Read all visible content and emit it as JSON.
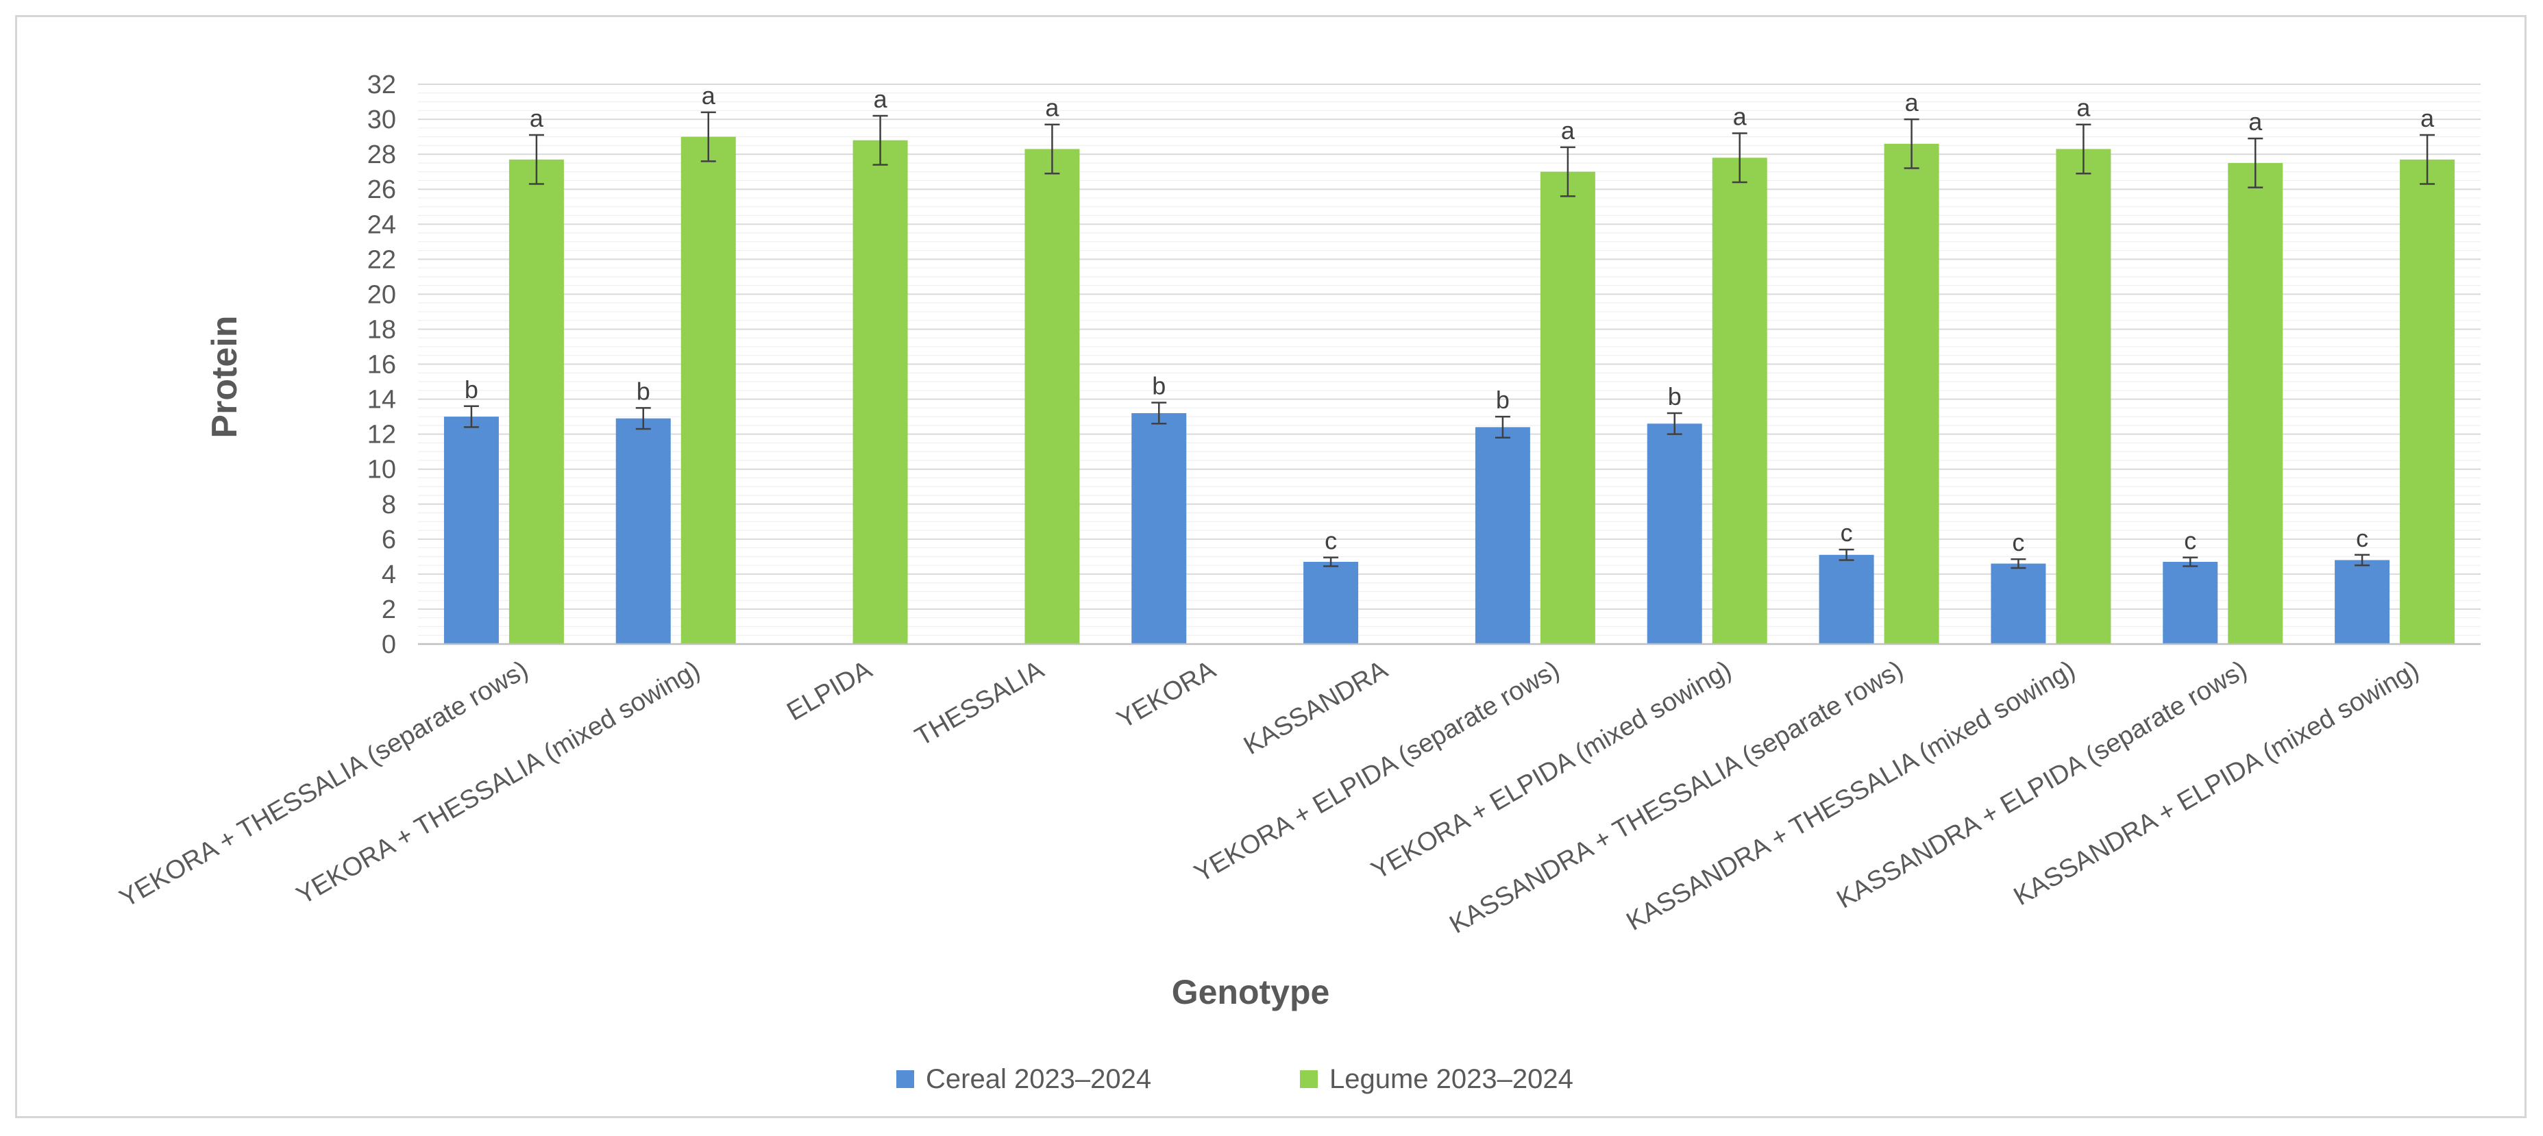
{
  "chart_data": {
    "type": "bar",
    "title": "",
    "xlabel": "Genotype",
    "ylabel": "Protein",
    "ylim": [
      0,
      32
    ],
    "ytick_step": 2,
    "grid": true,
    "legend_position": "bottom",
    "categories": [
      "YEKORA + THESSALIA (separate rows)",
      "YEKORA + THESSALIA (mixed sowing)",
      "ELPIDA",
      "THESSALIA",
      "YEKORA",
      "KASSANDRA",
      "YEKORA + ELPIDA (separate rows)",
      "YEKORA + ELPIDA (mixed sowing)",
      "KASSANDRA + THESSALIA (separate rows)",
      "KASSANDRA + THESSALIA (mixed sowing)",
      "KASSANDRA + ELPIDA (separate rows)",
      "KASSANDRA + ELPIDA (mixed sowing)"
    ],
    "series": [
      {
        "name": "Cereal 2023–2024",
        "color": "#558ed5",
        "values": [
          13.0,
          12.9,
          null,
          null,
          13.2,
          4.7,
          12.4,
          12.6,
          5.1,
          4.6,
          4.7,
          4.8
        ],
        "errors": [
          0.6,
          0.6,
          null,
          null,
          0.6,
          0.25,
          0.6,
          0.6,
          0.3,
          0.25,
          0.25,
          0.3
        ],
        "letters": [
          "b",
          "b",
          null,
          null,
          "b",
          "c",
          "b",
          "b",
          "c",
          "c",
          "c",
          "c"
        ]
      },
      {
        "name": "Legume 2023–2024",
        "color": "#92d050",
        "values": [
          27.7,
          29.0,
          28.8,
          28.3,
          null,
          null,
          27.0,
          27.8,
          28.6,
          28.3,
          27.5,
          27.7
        ],
        "errors": [
          1.4,
          1.4,
          1.4,
          1.4,
          null,
          null,
          1.4,
          1.4,
          1.4,
          1.4,
          1.4,
          1.4
        ],
        "letters": [
          "a",
          "a",
          "a",
          "a",
          null,
          null,
          "a",
          "a",
          "a",
          "a",
          "a",
          "a"
        ]
      }
    ]
  }
}
